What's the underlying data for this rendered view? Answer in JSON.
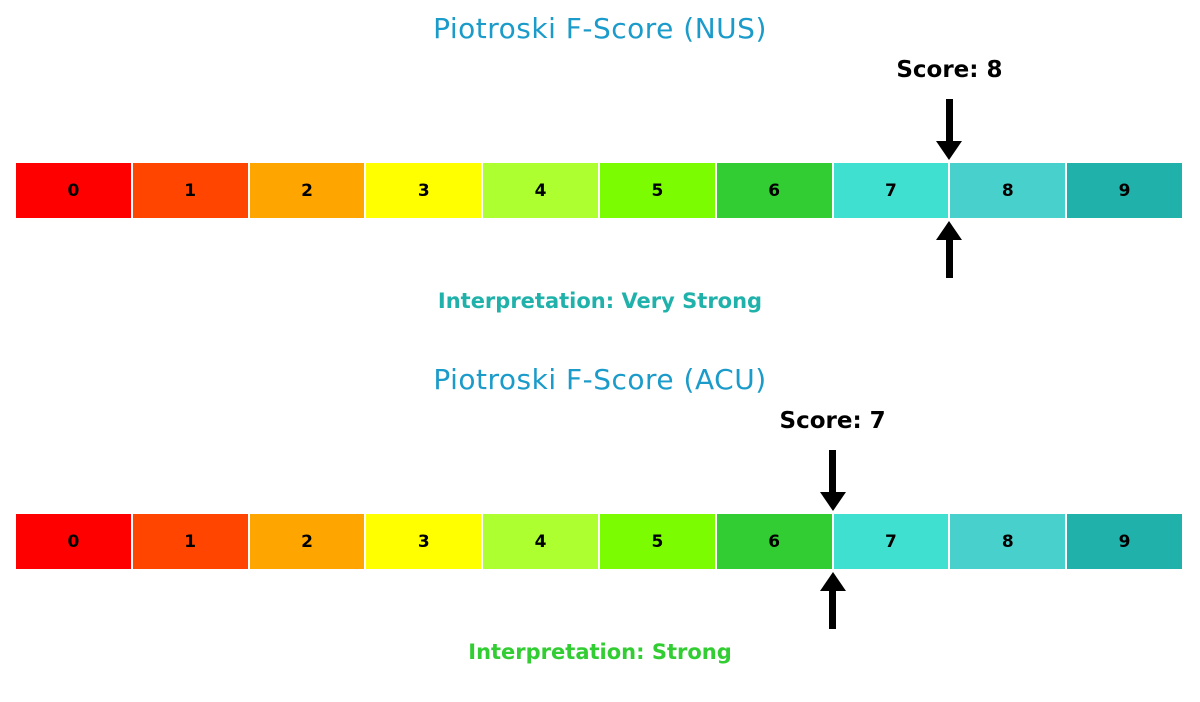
{
  "colors": {
    "title": "#1b9bca",
    "arrow": "#000000",
    "segment_text": "#000000",
    "segments": [
      "#ff0000",
      "#ff4500",
      "#ffa500",
      "#ffff00",
      "#adff2f",
      "#7cfc00",
      "#32cd32",
      "#40e0d0",
      "#48d1cc",
      "#20b2aa"
    ]
  },
  "chart_data": [
    {
      "type": "bar",
      "title": "Piotroski F-Score (NUS)",
      "score": 8,
      "score_label": "Score: 8",
      "categories": [
        "0",
        "1",
        "2",
        "3",
        "4",
        "5",
        "6",
        "7",
        "8",
        "9"
      ],
      "scale_range": [
        0,
        9
      ],
      "interpretation": "Interpretation: Very Strong",
      "interpretation_color": "#20b2aa",
      "marker": "black arrows above and below bar at score position"
    },
    {
      "type": "bar",
      "title": "Piotroski F-Score (ACU)",
      "score": 7,
      "score_label": "Score: 7",
      "categories": [
        "0",
        "1",
        "2",
        "3",
        "4",
        "5",
        "6",
        "7",
        "8",
        "9"
      ],
      "scale_range": [
        0,
        9
      ],
      "interpretation": "Interpretation: Strong",
      "interpretation_color": "#32cd32",
      "marker": "black arrows above and below bar at score position"
    }
  ]
}
